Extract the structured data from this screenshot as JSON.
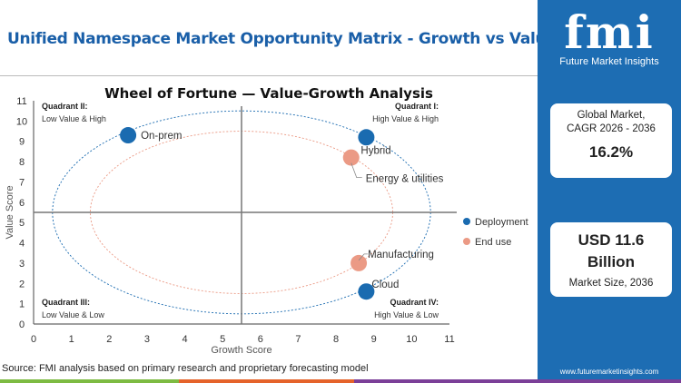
{
  "header": {
    "title": "Unified Namespace Market Opportunity Matrix - Growth vs Value"
  },
  "source": "Source: FMI analysis based on primary research and proprietary forecasting model",
  "brand": {
    "logo_text": "fmi",
    "name": "Future Market Insights",
    "url": "www.futuremarketinsights.com",
    "color": "#1d6db3"
  },
  "stats": {
    "cagr_label_1": "Global Market,",
    "cagr_label_2": "CAGR 2026 - 2036",
    "cagr_value": "16.2%",
    "size_value_1": "USD 11.6",
    "size_value_2": "Billion",
    "size_label": "Market Size, 2036"
  },
  "bottom_bar_colors": [
    "#7dbb42",
    "#e5632a",
    "#7b3f98"
  ],
  "chart_data": {
    "type": "scatter",
    "title": "Wheel of Fortune — Value-Growth  Analysis",
    "xlabel": "Growth Score",
    "ylabel": "Value Score",
    "xlim": [
      0,
      11
    ],
    "ylim": [
      0,
      11
    ],
    "xticks": [
      "0",
      "1",
      "2",
      "3",
      "4",
      "5",
      "6",
      "7",
      "8",
      "9",
      "10",
      "11"
    ],
    "yticks": [
      "0",
      "1",
      "2",
      "3",
      "4",
      "5",
      "6",
      "7",
      "8",
      "9",
      "10",
      "11"
    ],
    "grid": false,
    "quadrant_dividers": {
      "x": 5.5,
      "y": 5.5
    },
    "quadrants": [
      {
        "title": "Quadrant II:",
        "subtitle": "Low Value & High",
        "position": "top-left"
      },
      {
        "title": "Quadrant I:",
        "subtitle": "High Value & High",
        "position": "top-right"
      },
      {
        "title": "Quadrant III:",
        "subtitle": "Low Value & Low",
        "position": "bottom-left"
      },
      {
        "title": "Quadrant IV:",
        "subtitle": "High Value & Low",
        "position": "bottom-right"
      }
    ],
    "legend_position": "right",
    "series": [
      {
        "name": "Deployment",
        "color": "#1a6bb0",
        "ellipse": {
          "cx": 5.5,
          "cy": 5.5,
          "rx": 5,
          "ry": 5
        },
        "points": [
          {
            "label": "On-prem",
            "x": 2.5,
            "y": 9.3
          },
          {
            "label": "Hybrid",
            "x": 8.8,
            "y": 9.2
          },
          {
            "label": "Cloud",
            "x": 8.8,
            "y": 1.6
          }
        ]
      },
      {
        "name": "End use",
        "color": "#eb9a85",
        "ellipse": {
          "cx": 5.5,
          "cy": 5.5,
          "rx": 4,
          "ry": 4
        },
        "points": [
          {
            "label": "Energy & utilities",
            "x": 8.4,
            "y": 8.2
          },
          {
            "label": "Manufacturing",
            "x": 8.6,
            "y": 3.0
          }
        ]
      }
    ]
  }
}
